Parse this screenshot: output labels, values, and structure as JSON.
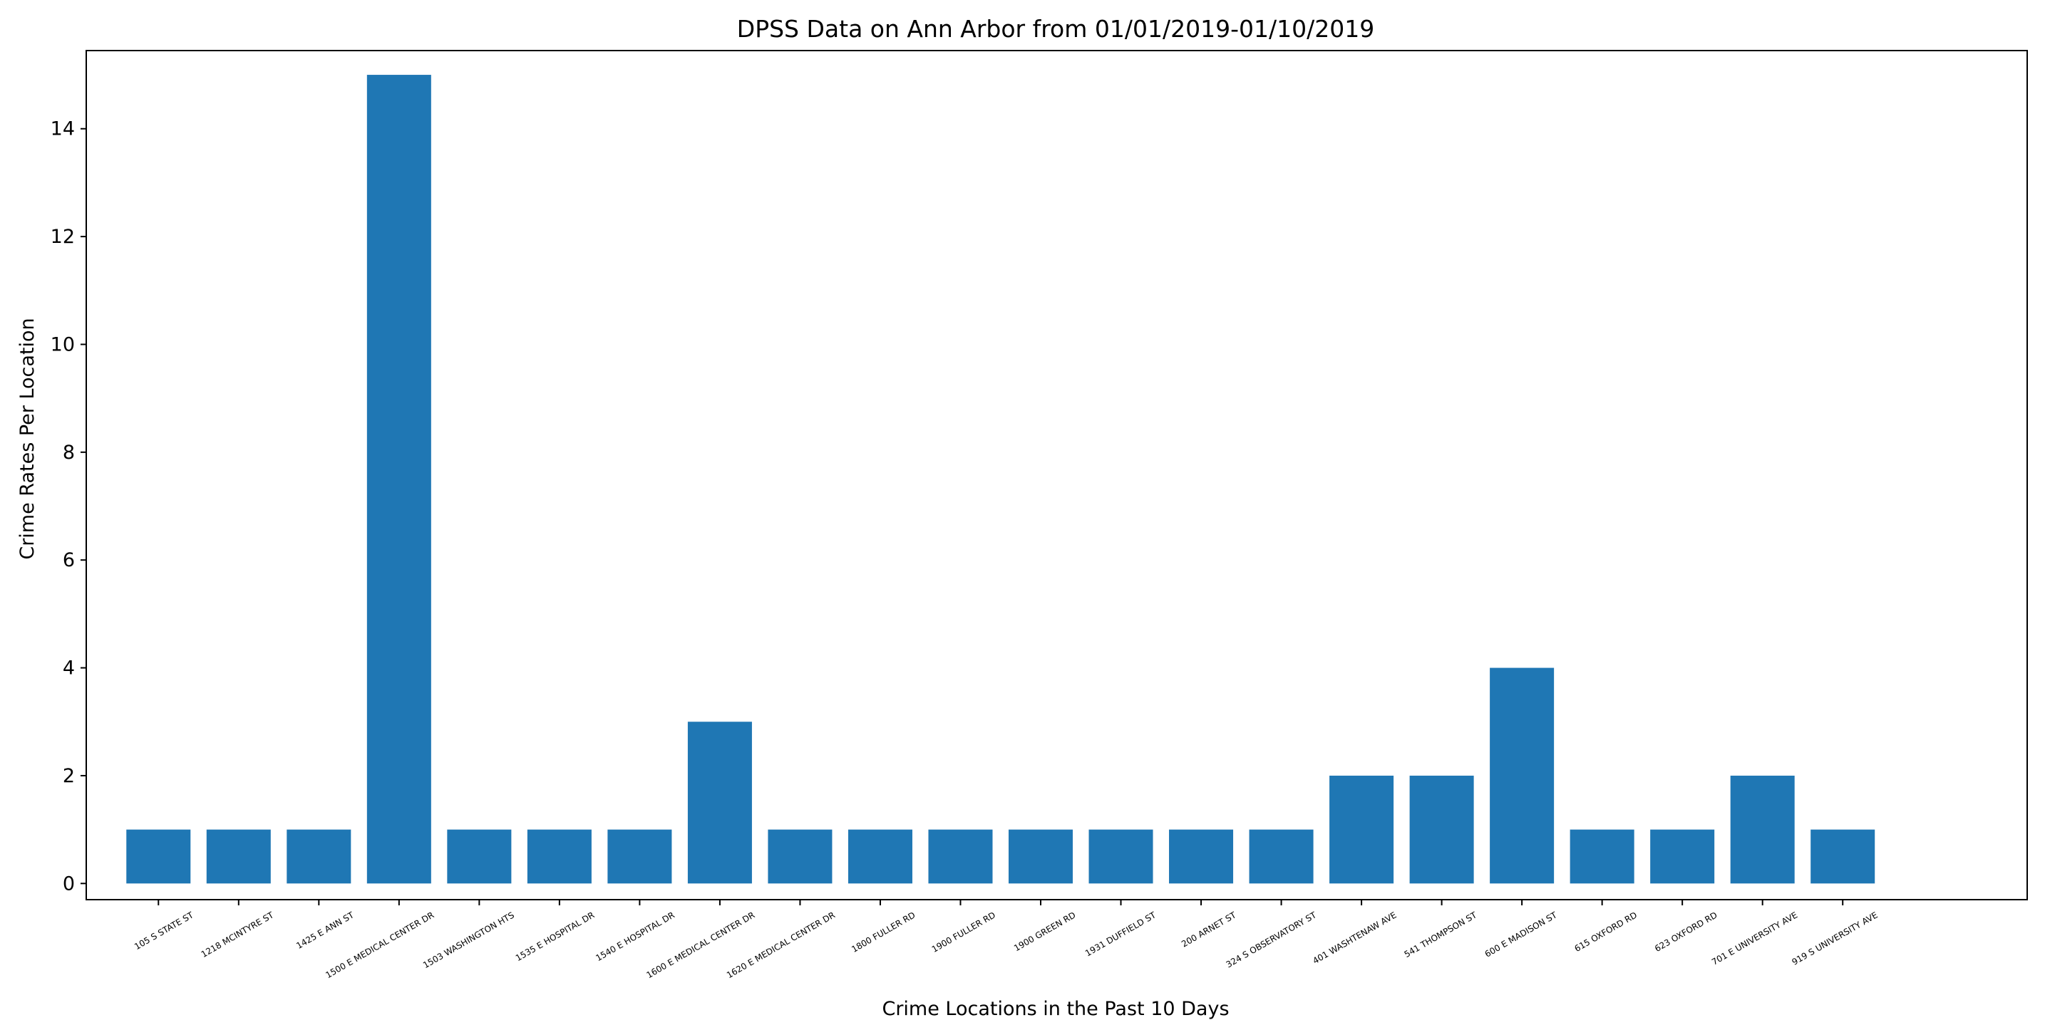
{
  "chart_data": {
    "type": "bar",
    "title": "DPSS Data on Ann Arbor from 01/01/2019-01/10/2019",
    "xlabel": "Crime Locations in the Past 10 Days",
    "ylabel": "Crime Rates Per Location",
    "categories": [
      "105 S STATE ST",
      "1218 MCINTYRE ST",
      "1425 E ANN ST",
      "1500 E MEDICAL CENTER DR",
      "1503 WASHINGTON HTS",
      "1535 E HOSPITAL DR",
      "1540 E HOSPITAL DR",
      "1600 E MEDICAL CENTER DR",
      "1620 E MEDICAL CENTER DR",
      "1800 FULLER RD",
      "1900 FULLER RD",
      "1900 GREEN RD",
      "1931 DUFFIELD ST",
      "200 ARNET ST",
      "324 S OBSERVATORY ST",
      "401 WASHTENAW AVE",
      "541 THOMPSON ST",
      "600 E MADISON ST",
      "615 OXFORD RD",
      "623 OXFORD RD",
      "701 E UNIVERSITY AVE",
      "919 S UNIVERSITY AVE"
    ],
    "values": [
      1,
      1,
      1,
      15,
      1,
      1,
      1,
      3,
      1,
      1,
      1,
      1,
      1,
      1,
      1,
      2,
      2,
      4,
      1,
      1,
      2,
      1
    ],
    "yticks": [
      0,
      2,
      4,
      6,
      8,
      10,
      12,
      14
    ],
    "ylim": [
      -0.3,
      15.45
    ],
    "xlim": [
      -0.9,
      23.3
    ],
    "grid": false,
    "bar_color": "#1f77b4"
  }
}
